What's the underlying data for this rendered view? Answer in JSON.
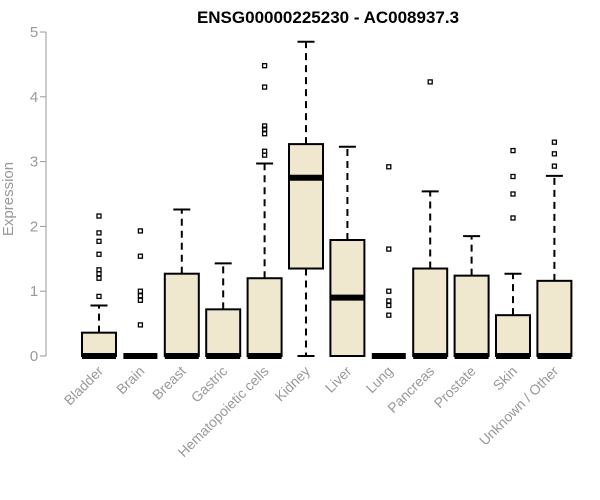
{
  "chart_data": {
    "type": "boxplot",
    "title": "ENSG00000225230 - AC008937.3",
    "ylabel": "Expression",
    "ylim": [
      0,
      5
    ],
    "yticks": [
      "0",
      "1",
      "2",
      "3",
      "4",
      "5"
    ],
    "box_fill": "#efe8cf",
    "stroke": "#000000",
    "axis_color": "#999999",
    "categories": [
      "Bladder",
      "Brain",
      "Breast",
      "Gastric",
      "Hematopoietic cells",
      "Kidney",
      "Liver",
      "Lung",
      "Pancreas",
      "Prostate",
      "Skin",
      "Unknown / Other"
    ],
    "boxes": [
      {
        "min": 0,
        "q1": 0,
        "median": 0,
        "q3": 0.36,
        "max": 0.78,
        "outliers": [
          0.92,
          1.2,
          1.27,
          1.33,
          1.57,
          1.77,
          1.9,
          2.16
        ]
      },
      {
        "min": 0,
        "q1": 0,
        "median": 0,
        "q3": 0,
        "max": 0,
        "outliers": [
          0.48,
          0.86,
          0.93,
          1.0,
          1.54,
          1.93
        ]
      },
      {
        "min": 0,
        "q1": 0,
        "median": 0,
        "q3": 1.27,
        "max": 2.26,
        "outliers": []
      },
      {
        "min": 0,
        "q1": 0,
        "median": 0,
        "q3": 0.72,
        "max": 1.43,
        "outliers": []
      },
      {
        "min": 0,
        "q1": 0,
        "median": 0,
        "q3": 1.2,
        "max": 2.97,
        "outliers": [
          3.1,
          3.16,
          3.43,
          3.5,
          3.55,
          4.15,
          4.48
        ]
      },
      {
        "min": 0,
        "q1": 1.35,
        "median": 2.75,
        "q3": 3.27,
        "max": 4.85,
        "outliers": []
      },
      {
        "min": 0,
        "q1": 0,
        "median": 0.9,
        "q3": 1.79,
        "max": 3.23,
        "outliers": []
      },
      {
        "min": 0,
        "q1": 0,
        "median": 0,
        "q3": 0,
        "max": 0,
        "outliers": [
          0.63,
          0.78,
          0.85,
          1.0,
          1.65,
          2.92
        ]
      },
      {
        "min": 0,
        "q1": 0,
        "median": 0,
        "q3": 1.35,
        "max": 2.54,
        "outliers": [
          4.23
        ]
      },
      {
        "min": 0,
        "q1": 0,
        "median": 0,
        "q3": 1.24,
        "max": 1.85,
        "outliers": []
      },
      {
        "min": 0,
        "q1": 0,
        "median": 0,
        "q3": 0.63,
        "max": 1.27,
        "outliers": [
          2.13,
          2.5,
          2.77,
          3.17
        ]
      },
      {
        "min": 0,
        "q1": 0,
        "median": 0,
        "q3": 1.16,
        "max": 2.78,
        "outliers": [
          2.93,
          3.12,
          3.3
        ]
      }
    ]
  }
}
